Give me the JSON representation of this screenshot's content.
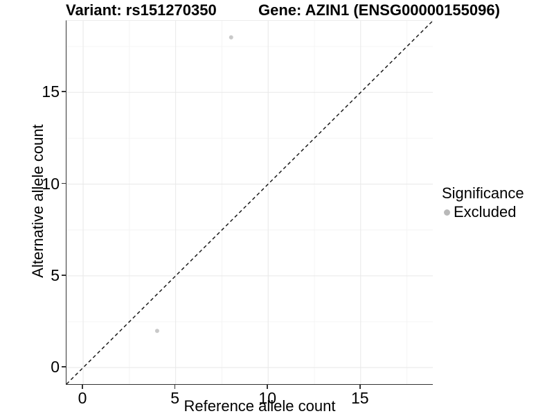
{
  "chart_data": {
    "type": "scatter",
    "title_left": "Variant: rs151270350",
    "title_right": "Gene: AZIN1 (ENSG00000155096)",
    "xlabel": "Reference allele count",
    "ylabel": "Alternative allele count",
    "xlim": [
      -0.9,
      18.9
    ],
    "ylim": [
      -0.9,
      18.9
    ],
    "x_major_ticks": [
      0,
      5,
      10,
      15
    ],
    "y_major_ticks": [
      0,
      5,
      10,
      15
    ],
    "x_minor_ticks": [
      2.5,
      7.5,
      12.5,
      17.5
    ],
    "y_minor_ticks": [
      2.5,
      7.5,
      12.5,
      17.5
    ],
    "points": [
      {
        "x": 4,
        "y": 2,
        "significance": "Excluded"
      },
      {
        "x": 8,
        "y": 18,
        "significance": "Excluded"
      }
    ],
    "point_color": "#c9c9c9",
    "point_radius": 3,
    "identity_line": {
      "style": "dashed",
      "from": -0.9,
      "to": 18.9,
      "color": "#1a1a1a"
    },
    "grid": {
      "show": true,
      "major_color": "#e8e8e8",
      "minor_color": "#f4f4f4"
    },
    "axis_color": "#333333",
    "legend": {
      "position": "right",
      "title": "Significance",
      "items": [
        {
          "label": "Excluded",
          "color": "#b9b9b9"
        }
      ]
    }
  }
}
